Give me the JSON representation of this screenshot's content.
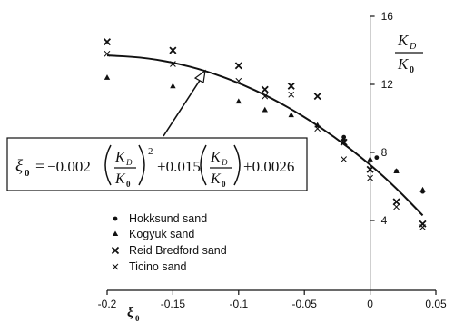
{
  "chart_data": {
    "type": "scatter",
    "xlabel": "ξ0",
    "ylabel_num": "K",
    "ylabel_num_sub": "D",
    "ylabel_den": "K",
    "ylabel_den_sub": "0",
    "xlim": [
      -0.2,
      0.05
    ],
    "ylim": [
      1.5,
      16
    ],
    "x_ticks": [
      -0.2,
      -0.15,
      -0.1,
      -0.05,
      0,
      0.05
    ],
    "x_tick_labels": [
      "-0.2",
      "-0.15",
      "-0.1",
      "-0.05",
      "0",
      "0.05"
    ],
    "y_ticks": [
      4,
      8,
      12,
      16
    ],
    "y_tick_labels": [
      "4",
      "8",
      "12",
      "16"
    ],
    "series": [
      {
        "name": "Hokksund sand",
        "marker": "dot",
        "points": [
          [
            -0.02,
            8.9
          ],
          [
            0.005,
            7.7
          ],
          [
            0.02,
            6.9
          ],
          [
            0.04,
            5.7
          ]
        ]
      },
      {
        "name": "Kogyuk sand",
        "marker": "triangle",
        "points": [
          [
            -0.2,
            12.4
          ],
          [
            -0.15,
            11.9
          ],
          [
            -0.1,
            11.0
          ],
          [
            -0.08,
            10.5
          ],
          [
            -0.06,
            10.2
          ],
          [
            -0.04,
            9.6
          ],
          [
            -0.02,
            8.8
          ],
          [
            0.0,
            7.6
          ],
          [
            0.02,
            6.9
          ],
          [
            0.04,
            5.8
          ]
        ]
      },
      {
        "name": "Reid Bredford sand",
        "marker": "x-bold",
        "points": [
          [
            -0.2,
            14.5
          ],
          [
            -0.15,
            14.0
          ],
          [
            -0.1,
            13.1
          ],
          [
            -0.08,
            11.7
          ],
          [
            -0.06,
            11.9
          ],
          [
            -0.04,
            11.3
          ],
          [
            -0.02,
            8.6
          ],
          [
            0.0,
            7.0
          ],
          [
            0.02,
            5.1
          ],
          [
            0.04,
            3.8
          ]
        ]
      },
      {
        "name": "Ticino sand",
        "marker": "x-thin",
        "points": [
          [
            -0.2,
            13.8
          ],
          [
            -0.15,
            13.2
          ],
          [
            -0.1,
            12.2
          ],
          [
            -0.08,
            11.3
          ],
          [
            -0.06,
            11.4
          ],
          [
            -0.04,
            9.4
          ],
          [
            -0.02,
            7.6
          ],
          [
            0.0,
            6.5
          ],
          [
            0.02,
            4.8
          ],
          [
            0.04,
            3.6
          ]
        ]
      }
    ],
    "fit_curve": {
      "x": [
        -0.2,
        -0.175,
        -0.15,
        -0.125,
        -0.1,
        -0.075,
        -0.05,
        -0.025,
        0.0,
        0.02,
        0.04
      ],
      "y": [
        13.7,
        13.6,
        13.3,
        12.8,
        12.1,
        11.2,
        10.1,
        8.8,
        7.3,
        5.9,
        4.3
      ]
    },
    "equation": {
      "lhs": "ξ",
      "lhs_sub": "0",
      "eq": "=",
      "coef1": "−0.002",
      "power": "2",
      "coef2": "+0.015",
      "const": "+0.0026",
      "frac_num": "K",
      "frac_num_sub": "D",
      "frac_den": "K",
      "frac_den_sub": "0"
    }
  }
}
